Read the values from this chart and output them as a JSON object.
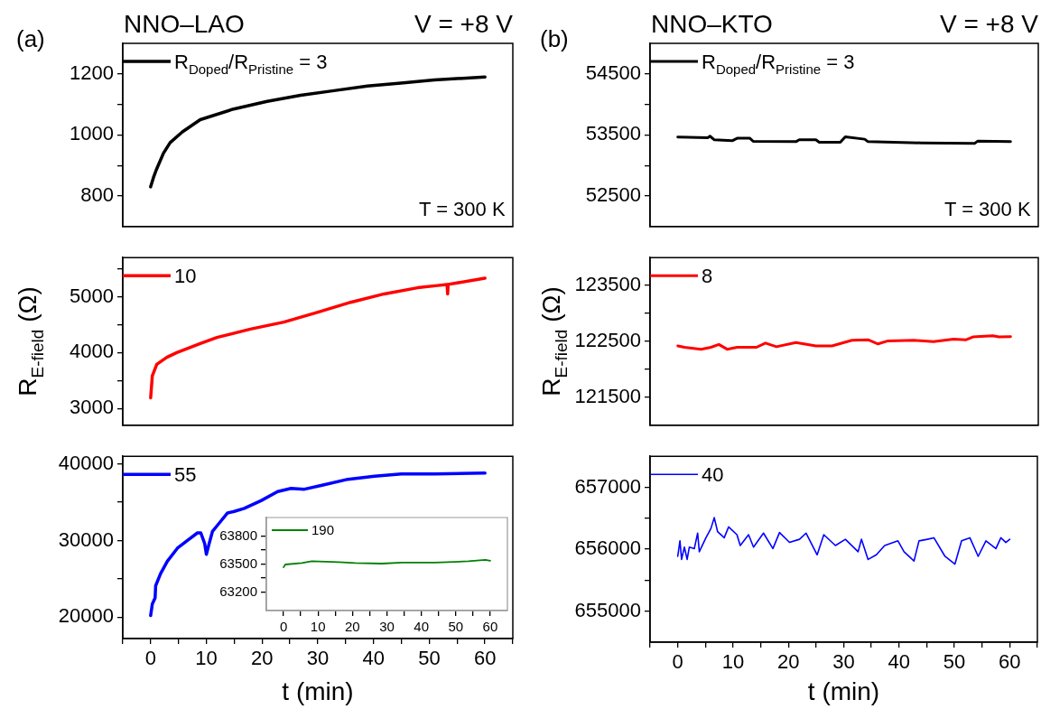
{
  "chart_data": [
    {
      "type": "line",
      "title": "NNO–LAO",
      "annotations": [
        "(a)",
        "V = +8 V",
        "T = 300 K"
      ],
      "legend": "top left",
      "tick_labels": "y",
      "xlim": [
        -5,
        65
      ],
      "ylim": [
        700,
        1300
      ],
      "yticks": [
        800,
        {
          "value": 900,
          "label": null
        },
        1000,
        {
          "value": 1100,
          "label": null
        },
        1200
      ],
      "series": [
        {
          "name": "R$_{Doped}$/R$_{Pristine}$ = 3",
          "color": "#000000",
          "x": [
            0,
            0.5,
            1,
            2.3,
            3.5,
            5.7,
            8.9,
            14.9,
            20.9,
            26.9,
            32.9,
            38.9,
            44.9,
            50.9,
            60
          ],
          "values": [
            830,
            860,
            885,
            940,
            975,
            1010,
            1050,
            1085,
            1110,
            1130,
            1145,
            1160,
            1170,
            1180,
            1190
          ]
        }
      ]
    },
    {
      "type": "line",
      "ylabel": "R$_{E-field}$ (Ω)",
      "legend": "top left",
      "tick_labels": "y",
      "xlim": [
        -5,
        65
      ],
      "ylim": [
        2700,
        5700
      ],
      "yticks": [
        3000,
        {
          "value": 3500,
          "label": null
        },
        4000,
        {
          "value": 4500,
          "label": null
        },
        5000,
        {
          "value": 5500,
          "label": null
        }
      ],
      "series": [
        {
          "name": "10",
          "color": "#ff0000",
          "x": [
            0,
            0.3,
            1.1,
            2.9,
            4.7,
            8.9,
            11.9,
            17.9,
            23.9,
            29.9,
            35.9,
            41.9,
            47.9,
            51.5,
            53.2,
            53.3,
            53.4,
            60
          ],
          "values": [
            3190,
            3585,
            3790,
            3915,
            4000,
            4160,
            4270,
            4420,
            4545,
            4720,
            4900,
            5050,
            5160,
            5200,
            5220,
            5050,
            5220,
            5330
          ]
        }
      ]
    },
    {
      "type": "line",
      "xlabel": "t (min)",
      "legend": "top left",
      "xlim": [
        -5,
        65
      ],
      "xticks": [
        {
          "value": -5,
          "label": null
        },
        0,
        {
          "value": 5,
          "label": null
        },
        10,
        {
          "value": 15,
          "label": null
        },
        20,
        {
          "value": 25,
          "label": null
        },
        30,
        {
          "value": 35,
          "label": null
        },
        40,
        {
          "value": 45,
          "label": null
        },
        50,
        {
          "value": 55,
          "label": null
        },
        60,
        {
          "value": 65,
          "label": null
        }
      ],
      "ylim": [
        17200,
        41000
      ],
      "yticks": [
        20000,
        {
          "value": 25000,
          "label": null
        },
        30000,
        {
          "value": 35000,
          "label": null
        },
        40000
      ],
      "series": [
        {
          "name": "55",
          "color": "#0000ff",
          "x": [
            0,
            0.3,
            0.8,
            0.9,
            1.8,
            3,
            4.8,
            6.6,
            8.4,
            9,
            9.7,
            10,
            10.5,
            11.1,
            12,
            13.8,
            15,
            16.8,
            19.8,
            22.8,
            25.2,
            27.6,
            30.6,
            35.4,
            40.2,
            45,
            51,
            60
          ],
          "values": [
            20200,
            21700,
            22500,
            24100,
            25700,
            27300,
            29000,
            30000,
            31000,
            31000,
            29600,
            28200,
            29600,
            31200,
            32000,
            33600,
            33800,
            34200,
            35200,
            36400,
            36800,
            36700,
            37200,
            38000,
            38400,
            38700,
            38700,
            38800
          ]
        }
      ]
    },
    {
      "type": "line",
      "legend": "top left",
      "xlim": [
        -5,
        65
      ],
      "xticks": [
        0,
        {
          "value": 5,
          "label": null
        },
        10,
        {
          "value": 15,
          "label": null
        },
        20,
        {
          "value": 25,
          "label": null
        },
        30,
        {
          "value": 35,
          "label": null
        },
        40,
        {
          "value": 45,
          "label": null
        },
        50,
        {
          "value": 55,
          "label": null
        },
        60
      ],
      "ylim": [
        63000,
        64000
      ],
      "yticks": [
        63200,
        {
          "value": 63350,
          "label": null
        },
        63500,
        {
          "value": 63650,
          "label": null
        },
        63800
      ],
      "series": [
        {
          "name": "190",
          "color": "#008000",
          "x": [
            0,
            0.5,
            5.3,
            8.2,
            16,
            20.8,
            28.6,
            34.4,
            44,
            53.7,
            58.6,
            60
          ],
          "values": [
            63465,
            63495,
            63510,
            63530,
            63520,
            63510,
            63505,
            63515,
            63515,
            63530,
            63545,
            63535
          ]
        }
      ]
    },
    {
      "type": "line",
      "title": "NNO–KTO",
      "annotations": [
        "(b)",
        "V = +8 V",
        "T = 300 K"
      ],
      "legend": "top left",
      "tick_labels": "y",
      "xlim": [
        -5,
        65
      ],
      "ylim": [
        52000,
        55000
      ],
      "yticks": [
        52500,
        {
          "value": 53000,
          "label": null
        },
        53500,
        {
          "value": 54000,
          "label": null
        },
        54500
      ],
      "series": [
        {
          "name": "R$_{Doped}$/R$_{Pristine}$ = 3",
          "color": "#000000",
          "x": [
            0,
            5.4,
            5.8,
            6.6,
            9.8,
            10.7,
            13,
            13.6,
            21.3,
            21.9,
            24.9,
            25.5,
            29.3,
            30.2,
            33.7,
            34.3,
            43.8,
            53.5,
            54.1,
            60
          ],
          "values": [
            53465,
            53455,
            53480,
            53420,
            53405,
            53445,
            53445,
            53395,
            53390,
            53420,
            53420,
            53380,
            53380,
            53470,
            53430,
            53390,
            53370,
            53360,
            53400,
            53390
          ]
        }
      ]
    },
    {
      "type": "line",
      "ylabel": "R$_{E-field}$ (Ω)",
      "legend": "top left",
      "tick_labels": "y",
      "xlim": [
        -5,
        65
      ],
      "ylim": [
        121000,
        124000
      ],
      "yticks": [
        121500,
        {
          "value": 122000,
          "label": null
        },
        122500,
        {
          "value": 123000,
          "label": null
        },
        123500
      ],
      "series": [
        {
          "name": "8",
          "color": "#ff0000",
          "x": [
            0,
            1.2,
            4.2,
            6,
            7.4,
            8.9,
            10.7,
            14.2,
            15.8,
            17.8,
            21.3,
            24.9,
            27.8,
            31.4,
            34.3,
            36.1,
            37.9,
            42.6,
            46.1,
            49.7,
            52,
            53.2,
            56.8,
            57.9,
            60
          ],
          "values": [
            122420,
            122395,
            122360,
            122395,
            122445,
            122360,
            122395,
            122395,
            122470,
            122405,
            122480,
            122420,
            122420,
            122520,
            122530,
            122455,
            122510,
            122520,
            122495,
            122540,
            122530,
            122580,
            122600,
            122580,
            122585
          ]
        }
      ]
    },
    {
      "type": "line",
      "xlabel": "t (min)",
      "legend": "top left",
      "xlim": [
        -5,
        65
      ],
      "xticks": [
        {
          "value": -5,
          "label": null
        },
        0,
        {
          "value": 5,
          "label": null
        },
        10,
        {
          "value": 15,
          "label": null
        },
        20,
        {
          "value": 25,
          "label": null
        },
        30,
        {
          "value": 35,
          "label": null
        },
        40,
        {
          "value": 45,
          "label": null
        },
        50,
        {
          "value": 55,
          "label": null
        },
        60,
        {
          "value": 65,
          "label": null
        }
      ],
      "ylim": [
        654500,
        657500
      ],
      "yticks": [
        655000,
        {
          "value": 655500,
          "label": null
        },
        656000,
        {
          "value": 656500,
          "label": null
        },
        657000
      ],
      "series": [
        {
          "name": "40",
          "color": "#0000ff",
          "x": [
            0,
            0.4,
            0.7,
            1.2,
            1.7,
            2.1,
            3,
            3.6,
            3.9,
            5.1,
            6,
            6.6,
            7.2,
            8.4,
            9.2,
            10.7,
            11.3,
            12.8,
            13.7,
            15.5,
            17.2,
            18.4,
            20.2,
            22,
            23.2,
            25.2,
            26.4,
            28.5,
            30.3,
            32.6,
            33.2,
            34.4,
            35.9,
            37.4,
            39.8,
            40.9,
            42.7,
            43.6,
            45.1,
            46.3,
            48.3,
            50.1,
            51.3,
            52.8,
            54.3,
            55.7,
            57.5,
            58.4,
            59.3,
            60
          ],
          "values": [
            655885,
            656135,
            655835,
            656035,
            655835,
            656035,
            656010,
            656260,
            655960,
            656185,
            656335,
            656510,
            656285,
            656185,
            656360,
            656235,
            656060,
            656235,
            656035,
            656260,
            656010,
            656270,
            656110,
            656160,
            656260,
            655910,
            656235,
            656060,
            656160,
            655960,
            656160,
            655835,
            655910,
            656060,
            656135,
            655960,
            655810,
            656135,
            656160,
            656185,
            655885,
            655760,
            656135,
            656185,
            655885,
            656135,
            656010,
            656185,
            656110,
            656160
          ]
        }
      ]
    }
  ]
}
